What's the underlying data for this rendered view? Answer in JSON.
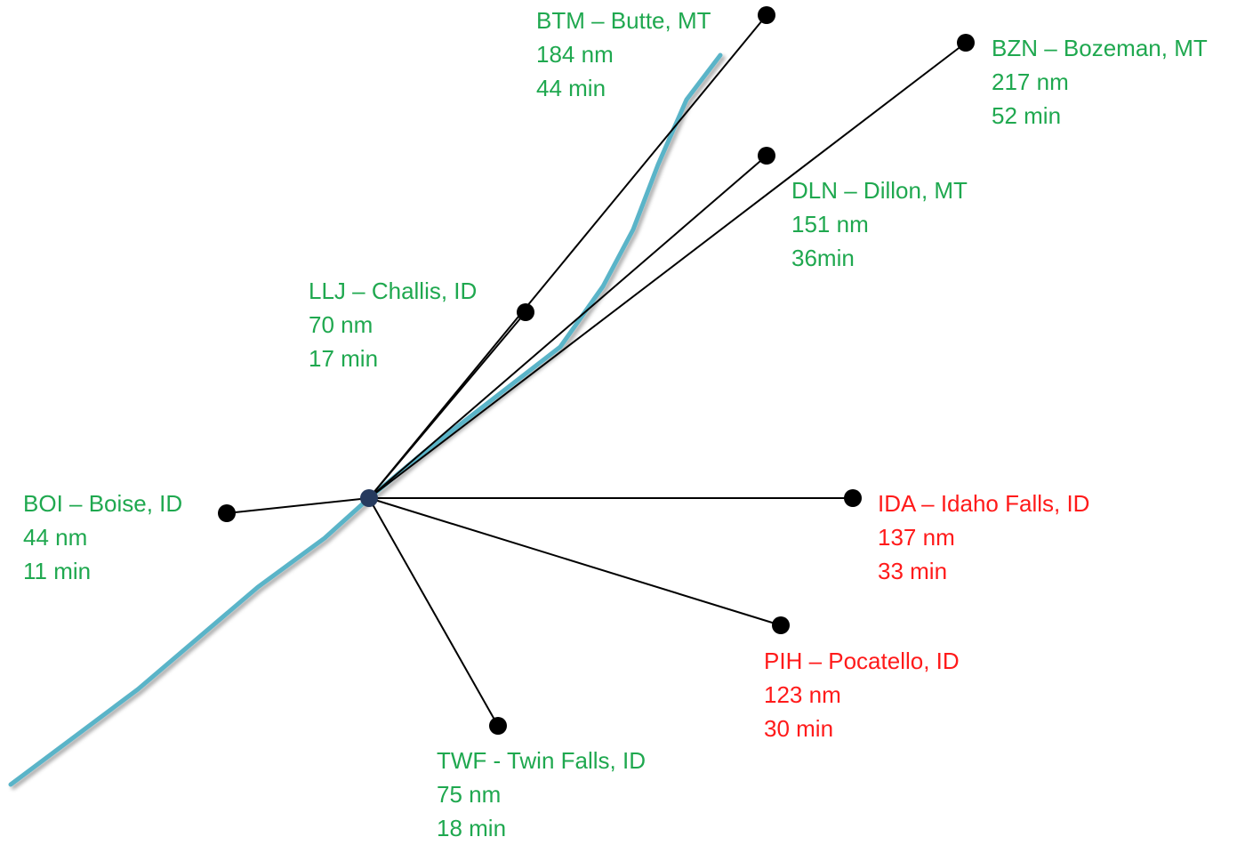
{
  "colors": {
    "within_range": "#1fa84f",
    "out_of_range": "#ff1a1a",
    "route_line": "#000000",
    "river": "#5ab4c8",
    "hub": "#253a5e",
    "marker": "#000000"
  },
  "destinations": [
    {
      "key": "btm",
      "name": "BTM – Butte, MT",
      "distance": "184 nm",
      "time": "44 min",
      "status": "within_range"
    },
    {
      "key": "bzn",
      "name": "BZN – Bozeman, MT",
      "distance": "217 nm",
      "time": "52 min",
      "status": "within_range"
    },
    {
      "key": "dln",
      "name": "DLN – Dillon, MT",
      "distance": "151 nm",
      "time": "36min",
      "status": "within_range"
    },
    {
      "key": "llj",
      "name": "LLJ – Challis, ID",
      "distance": "70 nm",
      "time": "17 min",
      "status": "within_range"
    },
    {
      "key": "boi",
      "name": "BOI – Boise, ID",
      "distance": "44 nm",
      "time": "11 min",
      "status": "within_range"
    },
    {
      "key": "ida",
      "name": "IDA – Idaho Falls, ID",
      "distance": "137 nm",
      "time": "33 min",
      "status": "out_of_range"
    },
    {
      "key": "pih",
      "name": "PIH – Pocatello, ID",
      "distance": "123 nm",
      "time": "30 min",
      "status": "out_of_range"
    },
    {
      "key": "twf",
      "name": "TWF - Twin Falls, ID",
      "distance": "75 nm",
      "time": "18 min",
      "status": "within_range"
    }
  ]
}
